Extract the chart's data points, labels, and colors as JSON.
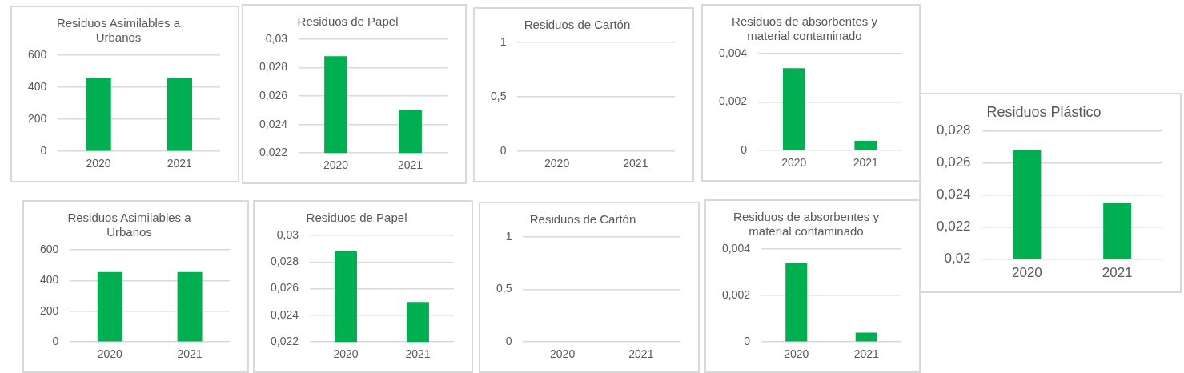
{
  "chart_data": [
    {
      "type": "bar",
      "title": [
        "Residuos Asimilables a",
        "Urbanos"
      ],
      "categories": [
        "2020",
        "2021"
      ],
      "values": [
        455,
        455
      ],
      "color": "#00b050",
      "ylim": [
        0,
        600
      ],
      "yticks": [
        0,
        200,
        400,
        600
      ],
      "grid": "y"
    },
    {
      "type": "bar",
      "title": "Residuos de Papel",
      "categories": [
        "2020",
        "2021"
      ],
      "values": [
        0.0288,
        0.025
      ],
      "color": "#00b050",
      "ylim": [
        0.022,
        0.03
      ],
      "yticks": [
        {
          "value": 0.022,
          "label": "0,022"
        },
        {
          "value": 0.024,
          "label": "0,024"
        },
        {
          "value": 0.026,
          "label": "0,026"
        },
        {
          "value": 0.028,
          "label": "0,028"
        },
        {
          "value": 0.03,
          "label": "0,03"
        }
      ],
      "grid": "y"
    },
    {
      "type": "bar",
      "title": "Residuos de Cartón",
      "categories": [
        "2020",
        "2021"
      ],
      "values": [
        0,
        0
      ],
      "color": "#00b050",
      "ylim": [
        0,
        1
      ],
      "yticks": [
        0,
        {
          "value": 0.5,
          "label": "0,5"
        },
        1
      ],
      "grid": "y"
    },
    {
      "type": "bar",
      "title": [
        "Residuos de absorbentes y",
        "material contaminado"
      ],
      "categories": [
        "2020",
        "2021"
      ],
      "values": [
        0.0034,
        0.0004
      ],
      "color": "#00b050",
      "ylim": [
        0,
        0.004
      ],
      "yticks": [
        0,
        {
          "value": 0.002,
          "label": "0,002"
        },
        {
          "value": 0.004,
          "label": "0,004"
        }
      ],
      "grid": "y"
    },
    {
      "type": "bar",
      "title": "Residuos Plástico",
      "categories": [
        "2020",
        "2021"
      ],
      "values": [
        0.0268,
        0.0235
      ],
      "color": "#00b050",
      "ylim": [
        0.02,
        0.028
      ],
      "yticks": [
        {
          "value": 0.02,
          "label": "0,02"
        },
        {
          "value": 0.022,
          "label": "0,022"
        },
        {
          "value": 0.024,
          "label": "0,024"
        },
        {
          "value": 0.026,
          "label": "0,026"
        },
        {
          "value": 0.028,
          "label": "0,028"
        }
      ],
      "grid": "y"
    },
    {
      "type": "bar",
      "title": [
        "Residuos Asimilables a",
        "Urbanos"
      ],
      "categories": [
        "2020",
        "2021"
      ],
      "values": [
        455,
        455
      ],
      "color": "#00b050",
      "ylim": [
        0,
        600
      ],
      "yticks": [
        0,
        200,
        400,
        600
      ],
      "grid": "y"
    },
    {
      "type": "bar",
      "title": "Residuos de Papel",
      "categories": [
        "2020",
        "2021"
      ],
      "values": [
        0.0288,
        0.025
      ],
      "color": "#00b050",
      "ylim": [
        0.022,
        0.03
      ],
      "yticks": [
        {
          "value": 0.022,
          "label": "0,022"
        },
        {
          "value": 0.024,
          "label": "0,024"
        },
        {
          "value": 0.026,
          "label": "0,026"
        },
        {
          "value": 0.028,
          "label": "0,028"
        },
        {
          "value": 0.03,
          "label": "0,03"
        }
      ],
      "grid": "y"
    },
    {
      "type": "bar",
      "title": "Residuos de Cartón",
      "categories": [
        "2020",
        "2021"
      ],
      "values": [
        0,
        0
      ],
      "color": "#00b050",
      "ylim": [
        0,
        1
      ],
      "yticks": [
        0,
        {
          "value": 0.5,
          "label": "0,5"
        },
        1
      ],
      "grid": "y"
    },
    {
      "type": "bar",
      "title": [
        "Residuos de absorbentes y",
        "material contaminado"
      ],
      "categories": [
        "2020",
        "2021"
      ],
      "values": [
        0.0034,
        0.0004
      ],
      "color": "#00b050",
      "ylim": [
        0,
        0.004
      ],
      "yticks": [
        0,
        {
          "value": 0.002,
          "label": "0,002"
        },
        {
          "value": 0.004,
          "label": "0,004"
        }
      ],
      "grid": "y"
    }
  ]
}
